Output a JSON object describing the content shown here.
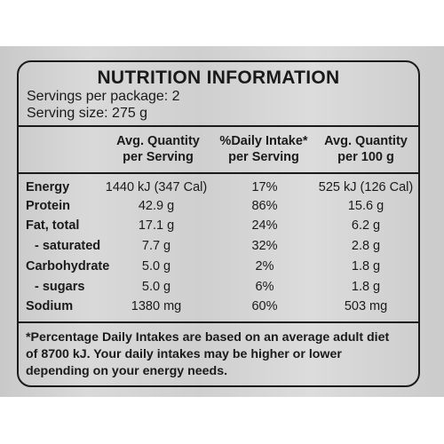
{
  "label": {
    "title": "NUTRITION INFORMATION",
    "servings_per_package": "Servings per package: 2",
    "serving_size": "Serving size: 275 g",
    "columns": {
      "per_serving": [
        "Avg. Quantity",
        "per Serving"
      ],
      "daily_intake": [
        "%Daily Intake*",
        "per Serving"
      ],
      "per_100g": [
        "Avg. Quantity",
        "per 100 g"
      ]
    },
    "rows": [
      {
        "name": "Energy",
        "per_serving": "1440 kJ (347 Cal)",
        "daily_intake": "17%",
        "per_100g": "525 kJ (126 Cal)"
      },
      {
        "name": "Protein",
        "per_serving": "42.9 g",
        "daily_intake": "86%",
        "per_100g": "15.6 g"
      },
      {
        "name": "Fat, total",
        "per_serving": "17.1 g",
        "daily_intake": "24%",
        "per_100g": "6.2 g"
      },
      {
        "name": "- saturated",
        "per_serving": "7.7 g",
        "daily_intake": "32%",
        "per_100g": "2.8 g"
      },
      {
        "name": "Carbohydrate",
        "per_serving": "5.0 g",
        "daily_intake": "2%",
        "per_100g": "1.8 g"
      },
      {
        "name": "- sugars",
        "per_serving": "5.0 g",
        "daily_intake": "6%",
        "per_100g": "1.8 g"
      },
      {
        "name": "Sodium",
        "per_serving": "1380 mg",
        "daily_intake": "60%",
        "per_100g": "503 mg"
      }
    ],
    "footnote": [
      "*Percentage Daily Intakes are based on an average adult diet",
      "of 8700 kJ. Your daily intakes may be higher or lower",
      "depending on your energy needs."
    ]
  }
}
